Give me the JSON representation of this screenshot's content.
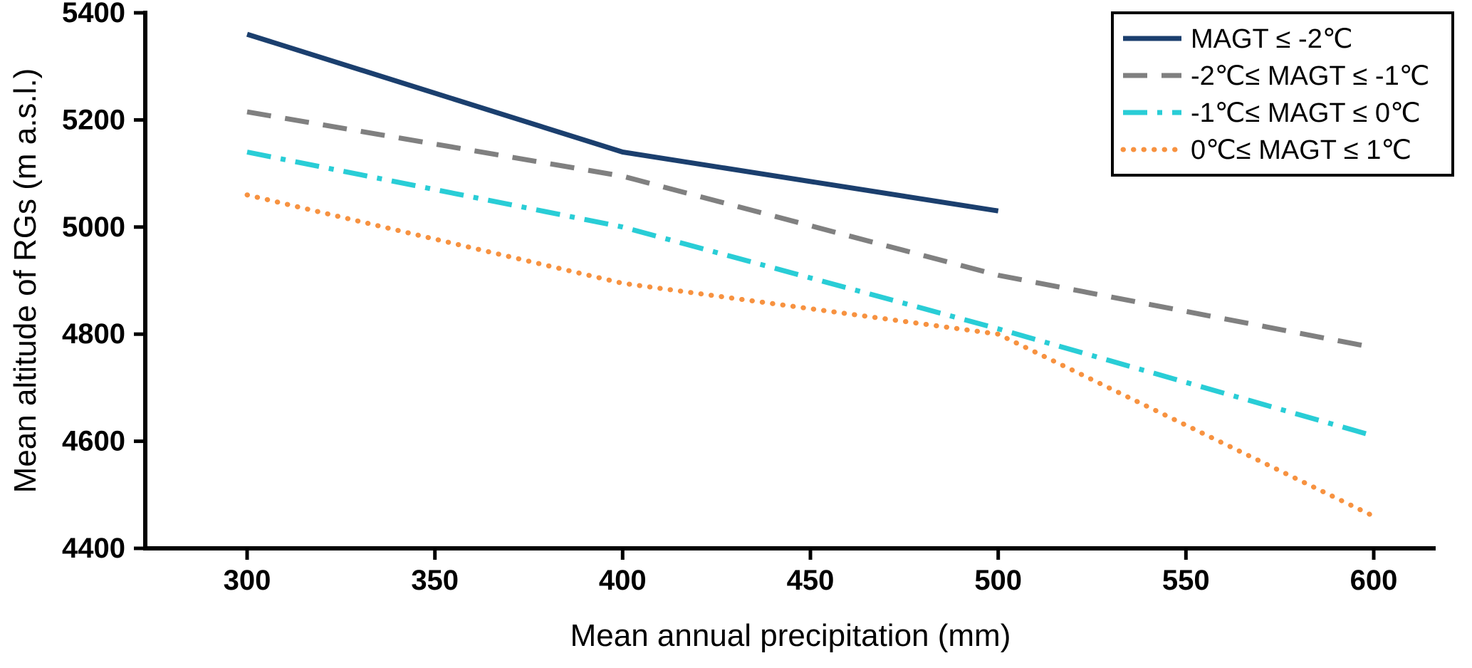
{
  "chart_data": {
    "type": "line",
    "title": "",
    "xlabel": "Mean annual precipitation (mm)",
    "ylabel": "Mean altitude of RGs (m a.s.l.)",
    "xlim": [
      273,
      616
    ],
    "ylim": [
      4400,
      5400
    ],
    "xticks": [
      300,
      350,
      400,
      450,
      500,
      550,
      600
    ],
    "yticks": [
      4400,
      4600,
      4800,
      5000,
      5200,
      5400
    ],
    "grid": false,
    "legend_position": "top-right",
    "axis_color": "#000000",
    "background_color": "#ffffff",
    "series": [
      {
        "name": "MAGT ≤ -2℃",
        "color": "#1b3f6e",
        "style": "solid",
        "x": [
          300,
          400,
          500
        ],
        "y": [
          5360,
          5140,
          5030
        ]
      },
      {
        "name": "-2℃≤ MAGT ≤ -1℃",
        "color": "#808080",
        "style": "dashed",
        "x": [
          300,
          400,
          500,
          600
        ],
        "y": [
          5215,
          5095,
          4910,
          4775
        ]
      },
      {
        "name": "-1℃≤ MAGT ≤ 0℃",
        "color": "#29cdd6",
        "style": "dashdot",
        "x": [
          300,
          400,
          500,
          600
        ],
        "y": [
          5140,
          5000,
          4810,
          4610
        ]
      },
      {
        "name": "0℃≤ MAGT ≤ 1℃",
        "color": "#f79240",
        "style": "dotted",
        "x": [
          300,
          400,
          500,
          600
        ],
        "y": [
          5060,
          4895,
          4800,
          4460
        ]
      }
    ]
  }
}
